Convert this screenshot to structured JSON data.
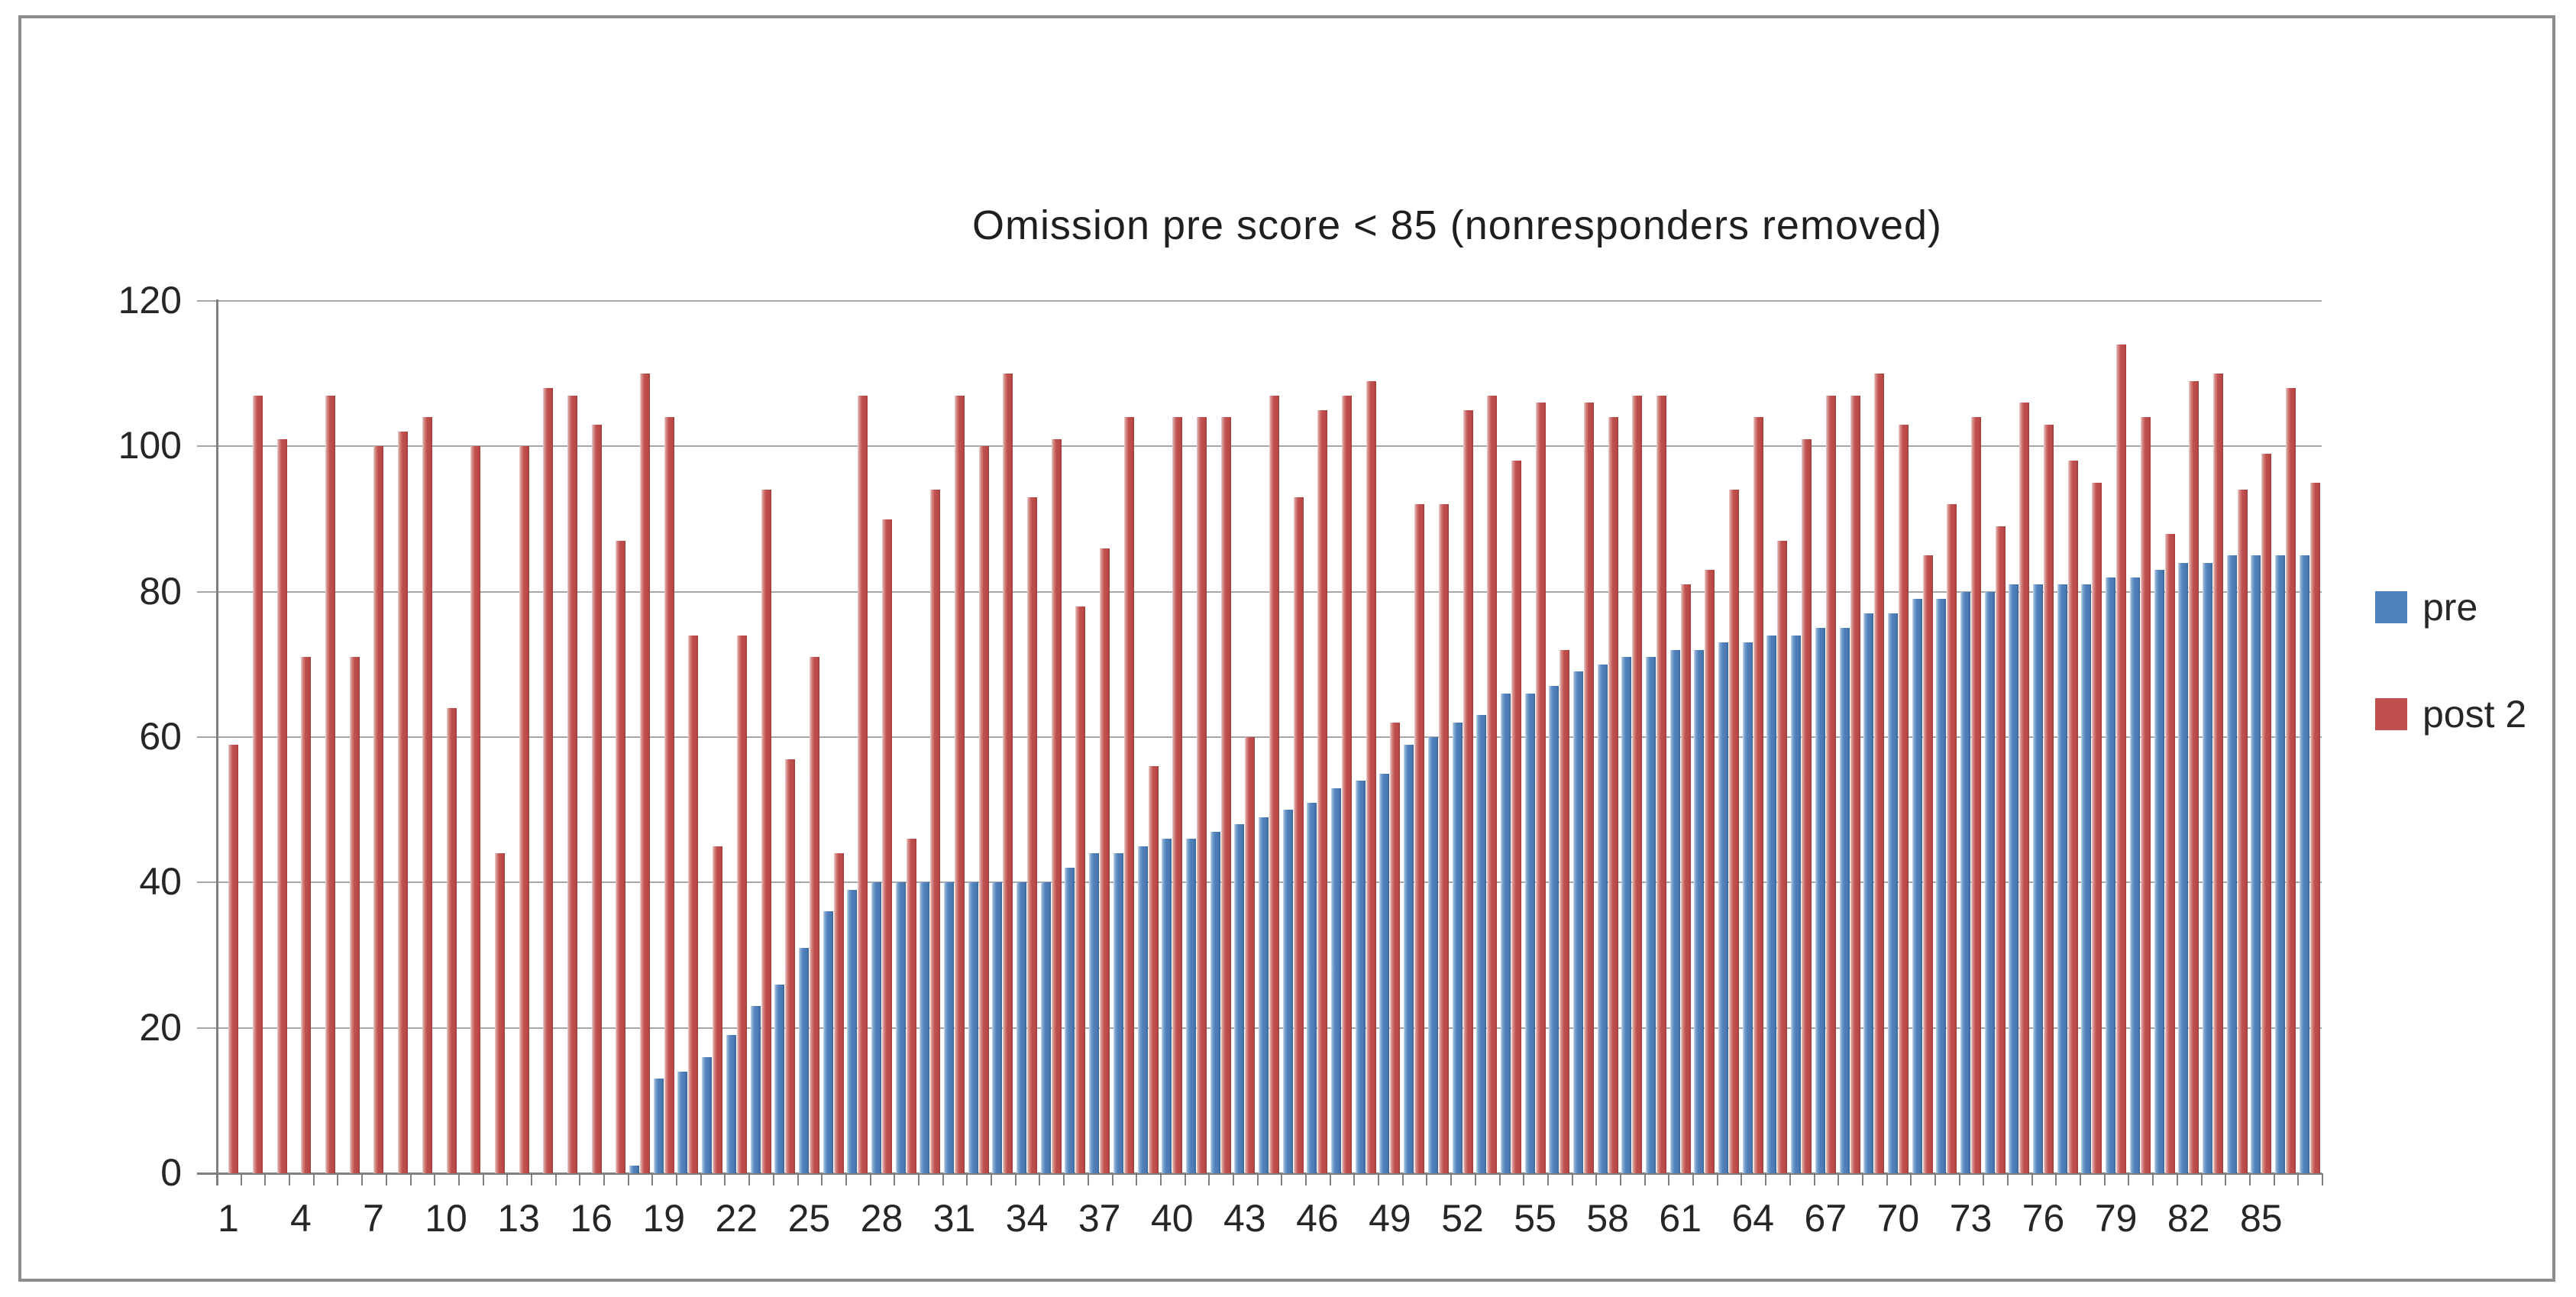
{
  "chart_data": {
    "type": "bar",
    "title": "Omission pre score < 85 (nonresponders removed)",
    "xlabel": "",
    "ylabel": "",
    "ylim": [
      0,
      120
    ],
    "y_ticks": [
      0,
      20,
      40,
      60,
      80,
      100,
      120
    ],
    "grid": true,
    "legend_position": "right",
    "categories": [
      1,
      2,
      3,
      4,
      5,
      6,
      7,
      8,
      9,
      10,
      11,
      12,
      13,
      14,
      15,
      16,
      17,
      18,
      19,
      20,
      21,
      22,
      23,
      24,
      25,
      26,
      27,
      28,
      29,
      30,
      31,
      32,
      33,
      34,
      35,
      36,
      37,
      38,
      39,
      40,
      41,
      42,
      43,
      44,
      45,
      46,
      47,
      48,
      49,
      50,
      51,
      52,
      53,
      54,
      55,
      56,
      57,
      58,
      59,
      60,
      61,
      62,
      63,
      64,
      65,
      66,
      67,
      68,
      69,
      70,
      71,
      72,
      73,
      74,
      75,
      76,
      77,
      78,
      79,
      80,
      81,
      82,
      83,
      84,
      85,
      86,
      87
    ],
    "x_tick_labels": [
      "1",
      "4",
      "7",
      "10",
      "13",
      "16",
      "19",
      "22",
      "25",
      "28",
      "31",
      "34",
      "37",
      "40",
      "43",
      "46",
      "49",
      "52",
      "55",
      "58",
      "61",
      "64",
      "67",
      "70",
      "73",
      "76",
      "79",
      "82",
      "85"
    ],
    "series": [
      {
        "name": "pre",
        "color": "#4f81bd",
        "values": [
          0,
          0,
          0,
          0,
          0,
          0,
          0,
          0,
          0,
          0,
          0,
          0,
          0,
          0,
          0,
          0,
          0,
          1,
          13,
          14,
          16,
          19,
          23,
          26,
          31,
          36,
          39,
          40,
          40,
          40,
          40,
          40,
          40,
          40,
          40,
          42,
          44,
          44,
          45,
          46,
          46,
          47,
          48,
          49,
          50,
          51,
          53,
          54,
          55,
          59,
          60,
          62,
          63,
          66,
          66,
          67,
          69,
          70,
          71,
          71,
          72,
          72,
          73,
          73,
          74,
          74,
          75,
          75,
          77,
          77,
          79,
          79,
          80,
          80,
          81,
          81,
          81,
          81,
          82,
          82,
          83,
          84,
          84,
          85,
          85,
          85,
          85
        ]
      },
      {
        "name": "post 2",
        "color": "#c0504d",
        "values": [
          59,
          107,
          101,
          71,
          107,
          71,
          100,
          102,
          104,
          64,
          100,
          44,
          100,
          108,
          107,
          103,
          87,
          110,
          104,
          74,
          45,
          74,
          94,
          57,
          71,
          44,
          107,
          90,
          46,
          94,
          107,
          100,
          110,
          93,
          101,
          78,
          86,
          104,
          56,
          104,
          104,
          104,
          60,
          107,
          93,
          105,
          107,
          109,
          62,
          92,
          92,
          105,
          107,
          98,
          106,
          72,
          106,
          104,
          107,
          107,
          81,
          83,
          94,
          104,
          87,
          101,
          107,
          107,
          110,
          103,
          85,
          92,
          104,
          89,
          106,
          103,
          98,
          95,
          114,
          104,
          88,
          109,
          110,
          94,
          99,
          108,
          95
        ]
      }
    ],
    "colors": {
      "pre": "#4f81bd",
      "post2": "#c0504d",
      "gridline": "#a6a6a6",
      "axis": "#7f7f7f",
      "text": "#262626",
      "frame": "#8c8c8c",
      "background": "#ffffff"
    }
  }
}
